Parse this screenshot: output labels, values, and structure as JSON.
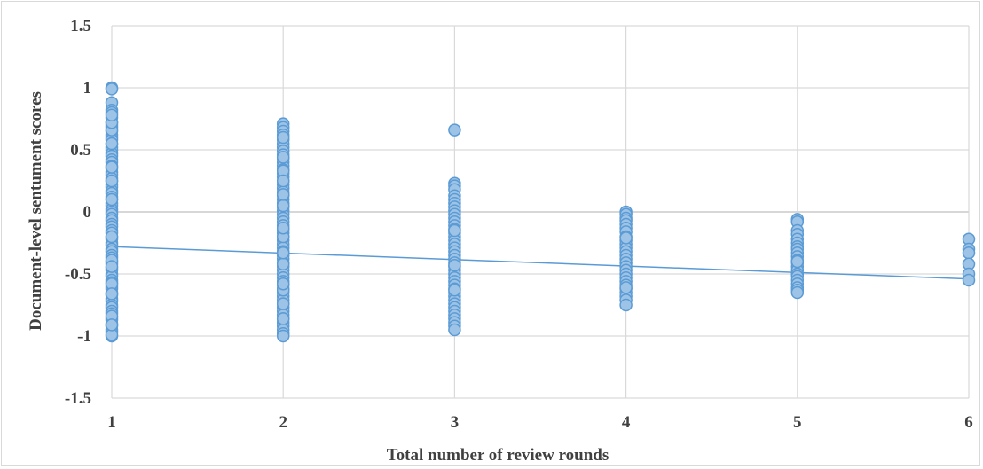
{
  "chart_data": {
    "type": "scatter",
    "title": "",
    "xlabel": "Total number of review rounds",
    "ylabel": "Document-level sentument scores",
    "xlim": [
      1,
      6
    ],
    "ylim": [
      -1.5,
      1.5
    ],
    "x_ticks": [
      "1",
      "2",
      "3",
      "4",
      "5",
      "6"
    ],
    "y_ticks": [
      "1.5",
      "1",
      "0.5",
      "0",
      "-0.5",
      "-1",
      "-1.5"
    ],
    "grid": true,
    "legend": "none",
    "marker_color": "#9dc3e6",
    "marker_edge_color": "#5b9bd5",
    "trendline": {
      "type": "linear",
      "color": "#5b9bd5",
      "x": [
        1,
        6
      ],
      "y": [
        -0.28,
        -0.54
      ]
    },
    "series": [
      {
        "x": [
          1,
          1,
          1,
          1,
          1,
          1,
          1,
          1,
          1,
          1,
          1,
          1,
          1,
          1,
          1,
          1,
          1,
          1,
          1,
          1,
          1,
          1,
          1,
          1,
          1,
          1,
          1,
          1,
          1,
          1,
          1,
          1,
          1,
          1,
          1,
          1,
          1,
          1,
          1,
          1,
          1,
          1,
          1,
          1,
          1,
          1,
          1,
          1,
          1,
          1,
          1,
          1,
          1,
          1,
          1,
          1,
          1,
          1,
          1,
          1,
          1,
          1,
          1,
          1,
          1,
          1,
          1,
          1,
          1,
          1,
          1,
          1,
          1,
          1,
          1,
          1,
          1,
          1,
          1,
          1,
          1,
          1,
          1,
          1,
          1,
          1,
          1,
          1,
          1,
          1,
          1
        ],
        "y": [
          1.0,
          0.99,
          0.88,
          0.82,
          0.8,
          0.76,
          0.72,
          0.7,
          0.68,
          0.65,
          0.62,
          0.6,
          0.58,
          0.55,
          0.52,
          0.5,
          0.47,
          0.45,
          0.42,
          0.4,
          0.37,
          0.35,
          0.32,
          0.3,
          0.27,
          0.25,
          0.22,
          0.2,
          0.17,
          0.15,
          0.12,
          0.1,
          0.07,
          0.05,
          0.02,
          0.0,
          -0.02,
          -0.05,
          -0.07,
          -0.1,
          -0.12,
          -0.15,
          -0.17,
          -0.2,
          -0.22,
          -0.25,
          -0.27,
          -0.3,
          -0.32,
          -0.35,
          -0.37,
          -0.4,
          -0.42,
          -0.45,
          -0.47,
          -0.5,
          -0.52,
          -0.55,
          -0.57,
          -0.6,
          -0.62,
          -0.65,
          -0.67,
          -0.7,
          -0.72,
          -0.75,
          -0.77,
          -0.8,
          -0.82,
          -0.85,
          -0.87,
          -0.9,
          -0.92,
          -0.95,
          -0.97,
          -1.0,
          -0.99,
          -0.84,
          -0.58,
          -0.39,
          -0.2,
          0.1,
          0.25,
          0.36,
          0.55,
          0.66,
          0.72,
          0.78,
          -0.66,
          -0.44,
          -0.91
        ]
      },
      {
        "x": [
          2,
          2,
          2,
          2,
          2,
          2,
          2,
          2,
          2,
          2,
          2,
          2,
          2,
          2,
          2,
          2,
          2,
          2,
          2,
          2,
          2,
          2,
          2,
          2,
          2,
          2,
          2,
          2,
          2,
          2,
          2,
          2,
          2,
          2,
          2,
          2,
          2,
          2,
          2,
          2,
          2,
          2,
          2,
          2,
          2,
          2,
          2,
          2,
          2,
          2,
          2,
          2,
          2,
          2,
          2,
          2,
          2,
          2,
          2,
          2,
          2,
          2,
          2,
          2,
          2,
          2,
          2,
          2,
          2,
          2,
          2,
          2
        ],
        "y": [
          0.71,
          0.68,
          0.65,
          0.62,
          0.58,
          0.55,
          0.52,
          0.49,
          0.46,
          0.43,
          0.4,
          0.37,
          0.34,
          0.31,
          0.28,
          0.25,
          0.22,
          0.19,
          0.16,
          0.13,
          0.1,
          0.07,
          0.04,
          0.01,
          -0.02,
          -0.05,
          -0.08,
          -0.11,
          -0.14,
          -0.17,
          -0.2,
          -0.23,
          -0.26,
          -0.29,
          -0.32,
          -0.35,
          -0.38,
          -0.41,
          -0.44,
          -0.47,
          -0.5,
          -0.53,
          -0.56,
          -0.59,
          -0.62,
          -0.65,
          -0.68,
          -0.71,
          -0.74,
          -0.77,
          -0.8,
          -0.83,
          -0.86,
          -0.89,
          -0.92,
          -0.95,
          -0.98,
          -1.0,
          -0.86,
          -0.74,
          -0.63,
          -0.42,
          -0.2,
          0.05,
          0.33,
          0.44,
          0.6,
          -0.33,
          -0.58,
          0.25,
          -0.13,
          0.14
        ]
      },
      {
        "x": [
          3,
          3,
          3,
          3,
          3,
          3,
          3,
          3,
          3,
          3,
          3,
          3,
          3,
          3,
          3,
          3,
          3,
          3,
          3,
          3,
          3,
          3,
          3,
          3,
          3,
          3,
          3,
          3,
          3,
          3,
          3,
          3,
          3,
          3,
          3,
          3,
          3,
          3,
          3,
          3,
          3,
          3,
          3,
          3
        ],
        "y": [
          0.66,
          0.23,
          0.21,
          0.18,
          0.13,
          0.1,
          0.07,
          0.04,
          0.01,
          -0.02,
          -0.05,
          -0.08,
          -0.11,
          -0.14,
          -0.17,
          -0.2,
          -0.23,
          -0.26,
          -0.29,
          -0.32,
          -0.35,
          -0.38,
          -0.41,
          -0.44,
          -0.47,
          -0.5,
          -0.53,
          -0.56,
          -0.59,
          -0.62,
          -0.65,
          -0.68,
          -0.71,
          -0.74,
          -0.77,
          -0.8,
          -0.83,
          -0.86,
          -0.89,
          -0.92,
          -0.95,
          -0.15,
          -0.63,
          -0.43
        ]
      },
      {
        "x": [
          4,
          4,
          4,
          4,
          4,
          4,
          4,
          4,
          4,
          4,
          4,
          4,
          4,
          4,
          4,
          4,
          4,
          4,
          4,
          4,
          4,
          4,
          4,
          4,
          4,
          4,
          4,
          4
        ],
        "y": [
          0.0,
          -0.02,
          -0.05,
          -0.07,
          -0.1,
          -0.13,
          -0.16,
          -0.2,
          -0.23,
          -0.26,
          -0.29,
          -0.32,
          -0.35,
          -0.38,
          -0.41,
          -0.44,
          -0.47,
          -0.5,
          -0.53,
          -0.56,
          -0.59,
          -0.62,
          -0.65,
          -0.68,
          -0.71,
          -0.75,
          -0.21,
          -0.61
        ]
      },
      {
        "x": [
          5,
          5,
          5,
          5,
          5,
          5,
          5,
          5,
          5,
          5,
          5,
          5,
          5,
          5,
          5,
          5,
          5,
          5,
          5,
          5,
          5,
          5
        ],
        "y": [
          -0.06,
          -0.08,
          -0.15,
          -0.18,
          -0.22,
          -0.25,
          -0.28,
          -0.3,
          -0.33,
          -0.36,
          -0.39,
          -0.41,
          -0.44,
          -0.47,
          -0.5,
          -0.52,
          -0.55,
          -0.58,
          -0.61,
          -0.63,
          -0.65,
          -0.4
        ]
      },
      {
        "x": [
          6,
          6,
          6,
          6,
          6,
          6
        ],
        "y": [
          -0.22,
          -0.3,
          -0.33,
          -0.42,
          -0.5,
          -0.55
        ]
      }
    ]
  }
}
